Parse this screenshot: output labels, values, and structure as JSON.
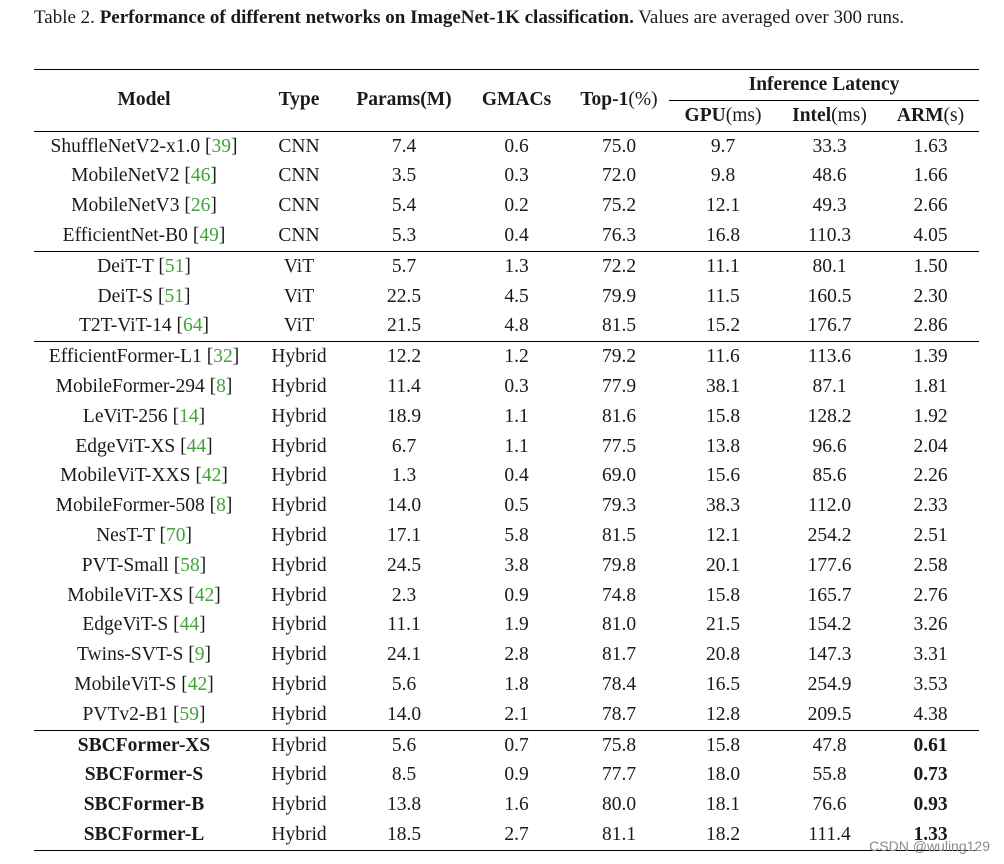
{
  "caption": {
    "label": "Table 2.",
    "title": "Performance of different networks on ImageNet-1K classification.",
    "note": "Values are averaged over 300 runs."
  },
  "header": {
    "model": "Model",
    "type": "Type",
    "params": "Params(M)",
    "gmacs": "GMACs",
    "top1": "Top-1",
    "top1_unit": "(%)",
    "inference_latency": "Inference Latency",
    "gpu": "GPU",
    "gpu_unit": "(ms)",
    "intel": "Intel",
    "intel_unit": "(ms)",
    "arm": "ARM",
    "arm_unit": "(s)"
  },
  "groups": [
    {
      "rows": [
        {
          "name": "ShuffleNetV2-x1.0",
          "cite": "39",
          "type": "CNN",
          "params": "7.4",
          "gmacs": "0.6",
          "top1": "75.0",
          "gpu": "9.7",
          "intel": "33.3",
          "arm": "1.63"
        },
        {
          "name": "MobileNetV2",
          "cite": "46",
          "type": "CNN",
          "params": "3.5",
          "gmacs": "0.3",
          "top1": "72.0",
          "gpu": "9.8",
          "intel": "48.6",
          "arm": "1.66"
        },
        {
          "name": "MobileNetV3",
          "cite": "26",
          "type": "CNN",
          "params": "5.4",
          "gmacs": "0.2",
          "top1": "75.2",
          "gpu": "12.1",
          "intel": "49.3",
          "arm": "2.66"
        },
        {
          "name": "EfficientNet-B0",
          "cite": "49",
          "type": "CNN",
          "params": "5.3",
          "gmacs": "0.4",
          "top1": "76.3",
          "gpu": "16.8",
          "intel": "110.3",
          "arm": "4.05"
        }
      ]
    },
    {
      "rows": [
        {
          "name": "DeiT-T",
          "cite": "51",
          "type": "ViT",
          "params": "5.7",
          "gmacs": "1.3",
          "top1": "72.2",
          "gpu": "11.1",
          "intel": "80.1",
          "arm": "1.50"
        },
        {
          "name": "DeiT-S",
          "cite": "51",
          "type": "ViT",
          "params": "22.5",
          "gmacs": "4.5",
          "top1": "79.9",
          "gpu": "11.5",
          "intel": "160.5",
          "arm": "2.30"
        },
        {
          "name": "T2T-ViT-14",
          "cite": "64",
          "type": "ViT",
          "params": "21.5",
          "gmacs": "4.8",
          "top1": "81.5",
          "gpu": "15.2",
          "intel": "176.7",
          "arm": "2.86"
        }
      ]
    },
    {
      "rows": [
        {
          "name": "EfficientFormer-L1",
          "cite": "32",
          "type": "Hybrid",
          "params": "12.2",
          "gmacs": "1.2",
          "top1": "79.2",
          "gpu": "11.6",
          "intel": "113.6",
          "arm": "1.39"
        },
        {
          "name": "MobileFormer-294",
          "cite": "8",
          "type": "Hybrid",
          "params": "11.4",
          "gmacs": "0.3",
          "top1": "77.9",
          "gpu": "38.1",
          "intel": "87.1",
          "arm": "1.81"
        },
        {
          "name": "LeViT-256",
          "cite": "14",
          "type": "Hybrid",
          "params": "18.9",
          "gmacs": "1.1",
          "top1": "81.6",
          "gpu": "15.8",
          "intel": "128.2",
          "arm": "1.92"
        },
        {
          "name": "EdgeViT-XS",
          "cite": "44",
          "type": "Hybrid",
          "params": "6.7",
          "gmacs": "1.1",
          "top1": "77.5",
          "gpu": "13.8",
          "intel": "96.6",
          "arm": "2.04"
        },
        {
          "name": "MobileViT-XXS",
          "cite": "42",
          "type": "Hybrid",
          "params": "1.3",
          "gmacs": "0.4",
          "top1": "69.0",
          "gpu": "15.6",
          "intel": "85.6",
          "arm": "2.26"
        },
        {
          "name": "MobileFormer-508",
          "cite": "8",
          "type": "Hybrid",
          "params": "14.0",
          "gmacs": "0.5",
          "top1": "79.3",
          "gpu": "38.3",
          "intel": "112.0",
          "arm": "2.33"
        },
        {
          "name": "NesT-T",
          "cite": "70",
          "type": "Hybrid",
          "params": "17.1",
          "gmacs": "5.8",
          "top1": "81.5",
          "gpu": "12.1",
          "intel": "254.2",
          "arm": "2.51"
        },
        {
          "name": "PVT-Small",
          "cite": "58",
          "type": "Hybrid",
          "params": "24.5",
          "gmacs": "3.8",
          "top1": "79.8",
          "gpu": "20.1",
          "intel": "177.6",
          "arm": "2.58"
        },
        {
          "name": "MobileViT-XS",
          "cite": "42",
          "type": "Hybrid",
          "params": "2.3",
          "gmacs": "0.9",
          "top1": "74.8",
          "gpu": "15.8",
          "intel": "165.7",
          "arm": "2.76"
        },
        {
          "name": "EdgeViT-S",
          "cite": "44",
          "type": "Hybrid",
          "params": "11.1",
          "gmacs": "1.9",
          "top1": "81.0",
          "gpu": "21.5",
          "intel": "154.2",
          "arm": "3.26"
        },
        {
          "name": "Twins-SVT-S",
          "cite": "9",
          "type": "Hybrid",
          "params": "24.1",
          "gmacs": "2.8",
          "top1": "81.7",
          "gpu": "20.8",
          "intel": "147.3",
          "arm": "3.31"
        },
        {
          "name": "MobileViT-S",
          "cite": "42",
          "type": "Hybrid",
          "params": "5.6",
          "gmacs": "1.8",
          "top1": "78.4",
          "gpu": "16.5",
          "intel": "254.9",
          "arm": "3.53"
        },
        {
          "name": "PVTv2-B1",
          "cite": "59",
          "type": "Hybrid",
          "params": "14.0",
          "gmacs": "2.1",
          "top1": "78.7",
          "gpu": "12.8",
          "intel": "209.5",
          "arm": "4.38"
        }
      ]
    },
    {
      "rows": [
        {
          "name": "SBCFormer-XS",
          "cite": "",
          "type": "Hybrid",
          "params": "5.6",
          "gmacs": "0.7",
          "top1": "75.8",
          "gpu": "15.8",
          "intel": "47.8",
          "arm": "0.61",
          "bold": true
        },
        {
          "name": "SBCFormer-S",
          "cite": "",
          "type": "Hybrid",
          "params": "8.5",
          "gmacs": "0.9",
          "top1": "77.7",
          "gpu": "18.0",
          "intel": "55.8",
          "arm": "0.73",
          "bold": true
        },
        {
          "name": "SBCFormer-B",
          "cite": "",
          "type": "Hybrid",
          "params": "13.8",
          "gmacs": "1.6",
          "top1": "80.0",
          "gpu": "18.1",
          "intel": "76.6",
          "arm": "0.93",
          "bold": true
        },
        {
          "name": "SBCFormer-L",
          "cite": "",
          "type": "Hybrid",
          "params": "18.5",
          "gmacs": "2.7",
          "top1": "81.1",
          "gpu": "18.2",
          "intel": "111.4",
          "arm": "1.33",
          "bold": true
        }
      ]
    }
  ],
  "colors": {
    "citation": "#3fa33a",
    "rule": "#000000",
    "text": "#1a1a1a"
  },
  "watermark": "CSDN @wuling129"
}
